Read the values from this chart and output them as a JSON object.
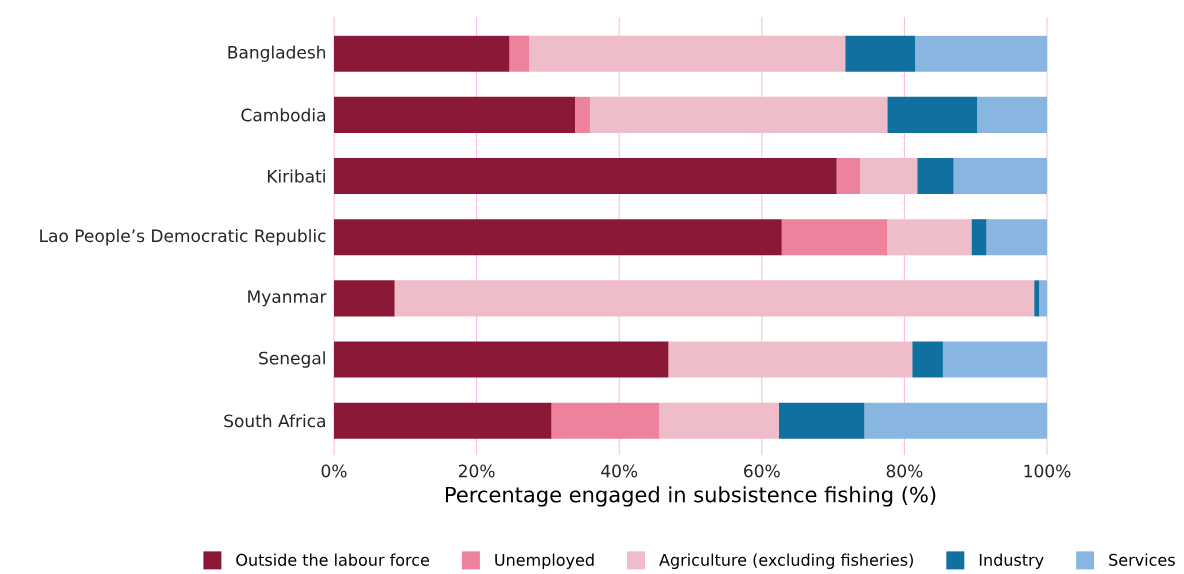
{
  "chart_data": {
    "type": "bar",
    "orientation": "horizontal",
    "stacked": true,
    "xlabel": "Percentage engaged in subsistence fishing (%)",
    "categories": [
      "Bangladesh",
      "Cambodia",
      "Kiribati",
      "Lao People’s Democratic Republic",
      "Myanmar",
      "Senegal",
      "South Africa"
    ],
    "series": [
      {
        "name": "Outside the labour force",
        "color": "#8c1838",
        "values": [
          24.6,
          33.8,
          70.5,
          62.8,
          8.5,
          46.9,
          30.5
        ]
      },
      {
        "name": "Unemployed",
        "color": "#ee829c",
        "values": [
          2.8,
          2.1,
          3.3,
          14.8,
          0,
          0,
          15.1
        ]
      },
      {
        "name": "Agriculture (excluding fisheries)",
        "color": "#eebdc9",
        "values": [
          44.3,
          41.7,
          8.0,
          11.8,
          89.7,
          34.2,
          16.8
        ]
      },
      {
        "name": "Industry",
        "color": "#1070a0",
        "values": [
          9.8,
          12.6,
          5.1,
          2.1,
          0.7,
          4.3,
          12.0
        ]
      },
      {
        "name": "Services",
        "color": "#88b6e0",
        "values": [
          18.5,
          9.8,
          13.1,
          8.5,
          1.1,
          14.6,
          25.6
        ]
      }
    ],
    "xlim": [
      0,
      100
    ],
    "xticks": [
      {
        "value": 0,
        "label": "0%"
      },
      {
        "value": 20,
        "label": "20%"
      },
      {
        "value": 40,
        "label": "40%"
      },
      {
        "value": 60,
        "label": "60%"
      },
      {
        "value": 80,
        "label": "80%"
      },
      {
        "value": 100,
        "label": "100%"
      }
    ],
    "grid": "x",
    "legend": "bottom"
  }
}
